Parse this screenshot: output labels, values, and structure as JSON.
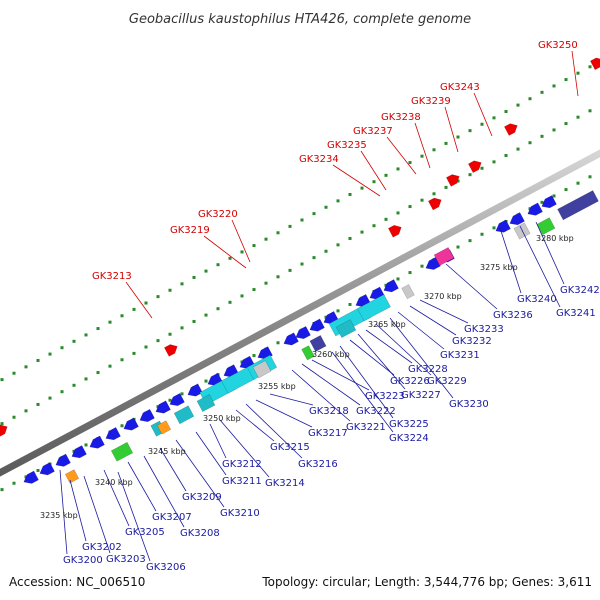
{
  "header": {
    "title": "Geobacillus kaustophilus HTA426, complete genome"
  },
  "footer": {
    "accession": "Accession: NC_006510",
    "summary": "Topology: circular; Length: 3,544,776 bp; Genes: 3,611"
  },
  "kbp_ticks": [
    "3235 kbp",
    "3240 kbp",
    "3245 kbp",
    "3250 kbp",
    "3255 kbp",
    "3260 kbp",
    "3265 kbp",
    "3270 kbp",
    "3275 kbp",
    "3280 kbp"
  ],
  "labels_forward": [
    "GK3213",
    "GK3219",
    "GK3220",
    "GK3234",
    "GK3235",
    "GK3237",
    "GK3238",
    "GK3239",
    "GK3243",
    "GK3250"
  ],
  "labels_reverse": [
    "GK3200",
    "GK3202",
    "GK3203",
    "GK3205",
    "GK3206",
    "GK3207",
    "GK3208",
    "GK3209",
    "GK3210",
    "GK3211",
    "GK3212",
    "GK3214",
    "GK3215",
    "GK3216",
    "GK3217",
    "GK3218",
    "GK3221",
    "GK3222",
    "GK3223",
    "GK3224",
    "GK3225",
    "GK3226",
    "GK3227",
    "GK3228",
    "GK3229",
    "GK3230",
    "GK3231",
    "GK3232",
    "GK3233",
    "GK3236",
    "GK3240",
    "GK3241",
    "GK3242"
  ],
  "colors": {
    "forward_label": "#d40000",
    "reverse_label": "#1a1aa0",
    "backbone": "#9a9a9a",
    "forward_gene": "#ee0000",
    "reverse_gene": "#1a1ae6",
    "cyan_gene": "#22d3e0",
    "teal_gene": "#1fbcc8",
    "green_gene": "#33cc33",
    "orange_gene": "#ff9a1a",
    "magenta_gene": "#ee3399",
    "gray_gene": "#c8c8c8",
    "navy_gene": "#4040a0",
    "dot": "#2a8a2a"
  }
}
